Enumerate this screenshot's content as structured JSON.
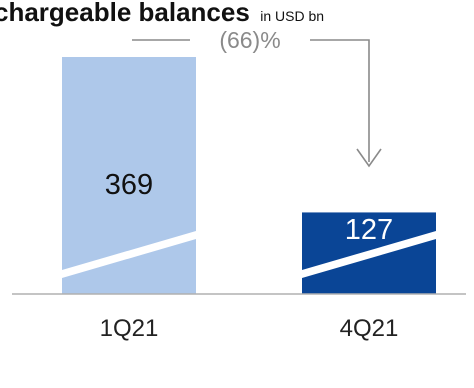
{
  "chart_data": {
    "type": "bar",
    "title": "chargeable balances",
    "title_unit": "in USD bn",
    "categories": [
      "1Q21",
      "4Q21"
    ],
    "values": [
      369,
      127
    ],
    "value_labels": [
      "369",
      "127"
    ],
    "ylim": [
      0,
      400
    ],
    "change_annotation": "(66)%",
    "grid": false,
    "legend": "none",
    "colors": {
      "bar_1": "#aec8ea",
      "bar_2": "#0a4596",
      "label_on_light": "#111111",
      "label_on_dark": "#ffffff",
      "annotation": "#8a8a8a",
      "axis": "#b0b0b0"
    }
  }
}
